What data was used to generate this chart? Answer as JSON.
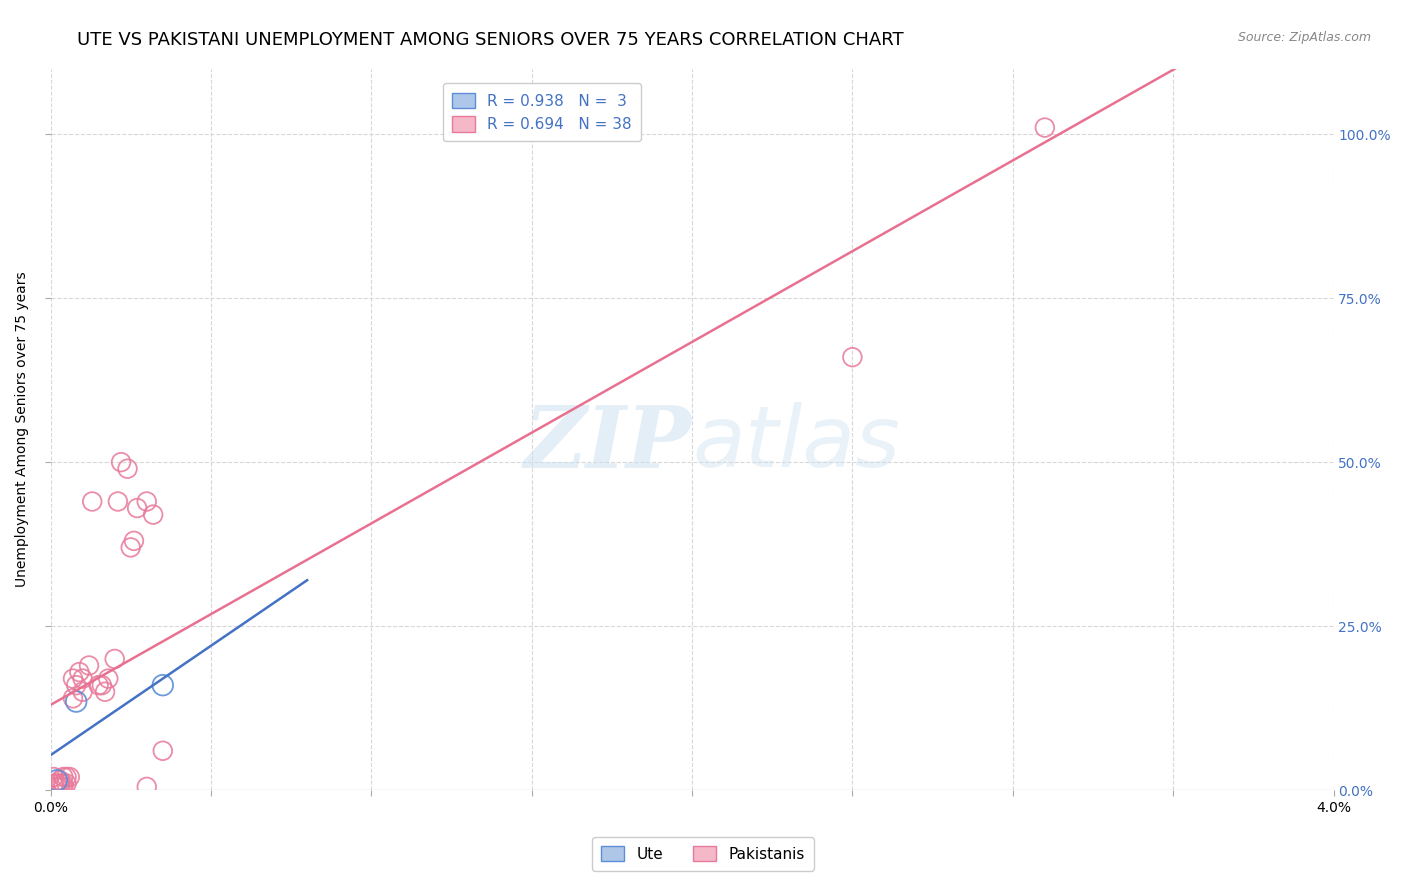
{
  "title": "UTE VS PAKISTANI UNEMPLOYMENT AMONG SENIORS OVER 75 YEARS CORRELATION CHART",
  "source": "Source: ZipAtlas.com",
  "ylabel": "Unemployment Among Seniors over 75 years",
  "ylabel_ticks_right": [
    "0.0%",
    "25.0%",
    "50.0%",
    "75.0%",
    "100.0%"
  ],
  "watermark": "ZIPatlas",
  "legend_ute_label": "R = 0.938   N =  3",
  "legend_pak_label": "R = 0.694   N = 38",
  "ute_face_color": "#aec6e8",
  "ute_edge_color": "#5b8ed6",
  "pak_face_color": "#f5b8c8",
  "pak_edge_color": "#e8799a",
  "ute_line_color": "#4472c4",
  "pak_line_color": "#e87090",
  "background_color": "#ffffff",
  "grid_color": "#d8d8d8",
  "xlim": [
    0.0,
    0.04
  ],
  "ylim": [
    0.0,
    1.1
  ],
  "x_ticks": [
    0.0,
    0.005,
    0.01,
    0.015,
    0.02,
    0.025,
    0.03,
    0.035,
    0.04
  ],
  "y_ticks": [
    0.0,
    0.25,
    0.5,
    0.75,
    1.0
  ],
  "title_fontsize": 13,
  "axis_label_fontsize": 10,
  "tick_fontsize": 10,
  "legend_fontsize": 11,
  "ute_points": [
    [
      0.0002,
      0.015
    ],
    [
      0.0008,
      0.135
    ],
    [
      0.0035,
      0.16
    ]
  ],
  "pak_points": [
    [
      0.0001,
      0.01
    ],
    [
      0.0001,
      0.02
    ],
    [
      0.0002,
      0.005
    ],
    [
      0.0002,
      0.01
    ],
    [
      0.0003,
      0.005
    ],
    [
      0.0003,
      0.01
    ],
    [
      0.0003,
      0.015
    ],
    [
      0.0004,
      0.005
    ],
    [
      0.0004,
      0.01
    ],
    [
      0.0004,
      0.02
    ],
    [
      0.0005,
      0.01
    ],
    [
      0.0005,
      0.02
    ],
    [
      0.0006,
      0.02
    ],
    [
      0.0007,
      0.14
    ],
    [
      0.0007,
      0.17
    ],
    [
      0.0008,
      0.16
    ],
    [
      0.0009,
      0.18
    ],
    [
      0.001,
      0.15
    ],
    [
      0.001,
      0.17
    ],
    [
      0.0012,
      0.19
    ],
    [
      0.0013,
      0.44
    ],
    [
      0.0015,
      0.16
    ],
    [
      0.0016,
      0.16
    ],
    [
      0.0017,
      0.15
    ],
    [
      0.0018,
      0.17
    ],
    [
      0.002,
      0.2
    ],
    [
      0.0021,
      0.44
    ],
    [
      0.0022,
      0.5
    ],
    [
      0.0024,
      0.49
    ],
    [
      0.0025,
      0.37
    ],
    [
      0.0026,
      0.38
    ],
    [
      0.0027,
      0.43
    ],
    [
      0.003,
      0.44
    ],
    [
      0.0032,
      0.42
    ],
    [
      0.003,
      0.005
    ],
    [
      0.0035,
      0.06
    ],
    [
      0.025,
      0.66
    ],
    [
      0.031,
      1.01
    ]
  ],
  "ute_line_x": [
    0.0,
    0.008
  ],
  "pak_line_x": [
    0.0,
    0.04
  ]
}
